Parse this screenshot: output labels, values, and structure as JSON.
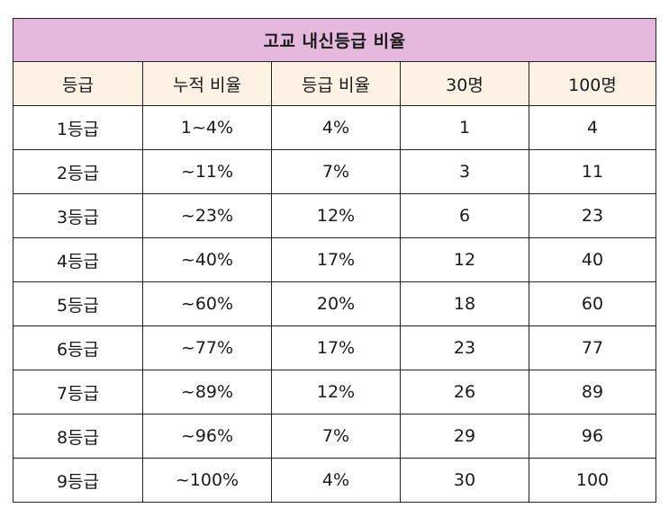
{
  "table": {
    "title": "고교 내신등급 비율",
    "headers": [
      "등급",
      "누적 비율",
      "등급 비율",
      "30명",
      "100명"
    ],
    "rows": [
      [
        "1등급",
        "1~4%",
        "4%",
        "1",
        "4"
      ],
      [
        "2등급",
        "~11%",
        "7%",
        "3",
        "11"
      ],
      [
        "3등급",
        "~23%",
        "12%",
        "6",
        "23"
      ],
      [
        "4등급",
        "~40%",
        "17%",
        "12",
        "40"
      ],
      [
        "5등급",
        "~60%",
        "20%",
        "18",
        "60"
      ],
      [
        "6등급",
        "~77%",
        "17%",
        "23",
        "77"
      ],
      [
        "7등급",
        "~89%",
        "12%",
        "26",
        "89"
      ],
      [
        "8등급",
        "~96%",
        "7%",
        "29",
        "96"
      ],
      [
        "9등급",
        "~100%",
        "4%",
        "30",
        "100"
      ]
    ],
    "colors": {
      "title_background": "#e5b8dd",
      "header_background": "#fdf2e4",
      "border": "#222222"
    }
  }
}
